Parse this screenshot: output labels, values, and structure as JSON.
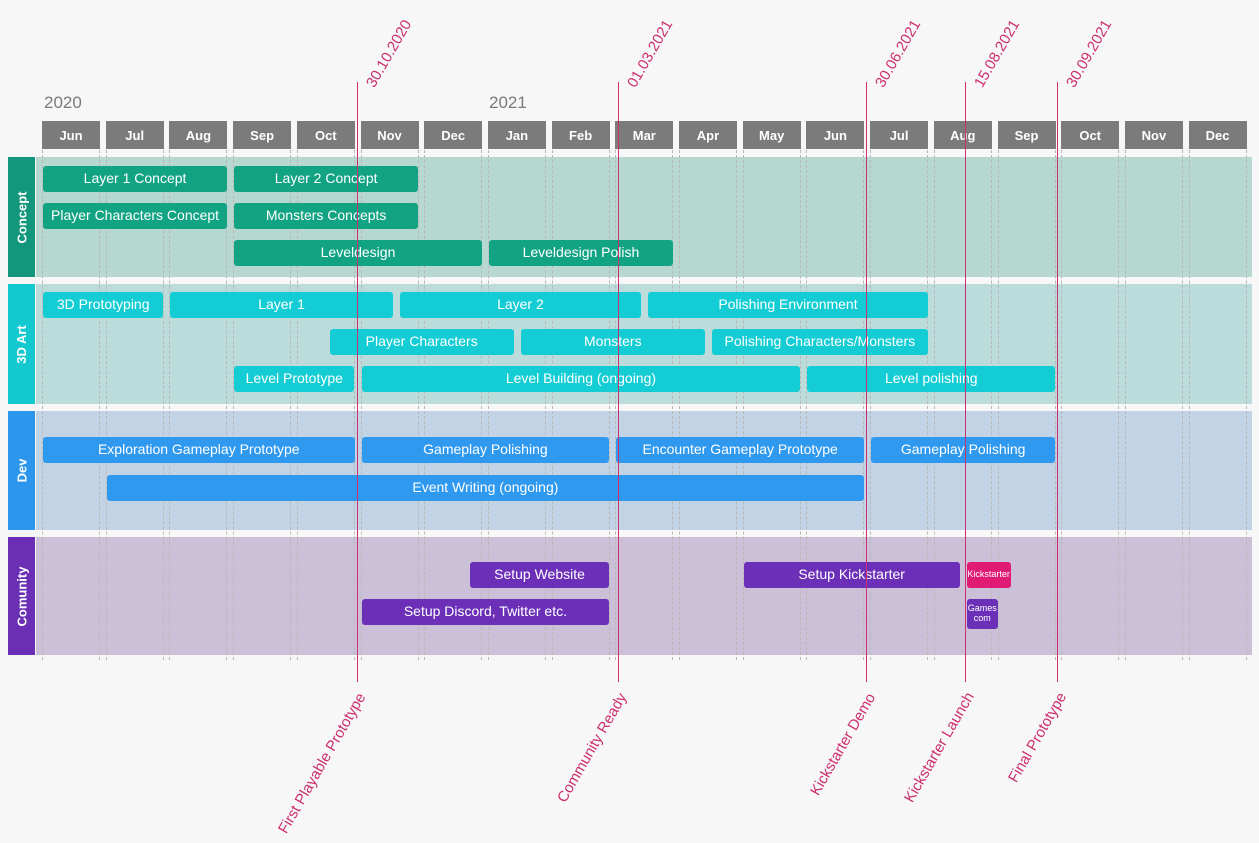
{
  "years": [
    "2020",
    "2021"
  ],
  "months": [
    "Jun",
    "Jul",
    "Aug",
    "Sep",
    "Oct",
    "Nov",
    "Dec",
    "Jan",
    "Feb",
    "Mar",
    "Apr",
    "May",
    "Jun",
    "Jul",
    "Aug",
    "Sep",
    "Oct",
    "Nov",
    "Dec"
  ],
  "lanes": [
    {
      "label": "Concept",
      "tab_color": "#12977c",
      "bg_color": "#b7d7d1",
      "bar_color": "#12a383",
      "bars": [
        {
          "label": "Layer 1 Concept",
          "start": 0,
          "end": 3.0,
          "row": 0
        },
        {
          "label": "Layer 2 Concept",
          "start": 3.0,
          "end": 6.0,
          "row": 0
        },
        {
          "label": "Player Characters Concept",
          "start": 0,
          "end": 3.0,
          "row": 1
        },
        {
          "label": "Monsters Concepts",
          "start": 3.0,
          "end": 6.0,
          "row": 1
        },
        {
          "label": "Leveldesign",
          "start": 3.0,
          "end": 7.0,
          "row": 2
        },
        {
          "label": "Leveldesign Polish",
          "start": 7.0,
          "end": 10.0,
          "row": 2
        }
      ]
    },
    {
      "label": "3D Art",
      "tab_color": "#13c9cf",
      "bg_color": "#bcdcdc",
      "bar_color": "#14cdd4",
      "bars": [
        {
          "label": "3D Prototyping",
          "start": 0,
          "end": 2.0,
          "row": 0
        },
        {
          "label": "Layer 1",
          "start": 2.0,
          "end": 5.6,
          "row": 0
        },
        {
          "label": "Layer 2",
          "start": 5.6,
          "end": 9.5,
          "row": 0
        },
        {
          "label": "Polishing Environment",
          "start": 9.5,
          "end": 14.0,
          "row": 0
        },
        {
          "label": "Player Characters",
          "start": 4.5,
          "end": 7.5,
          "row": 1
        },
        {
          "label": "Monsters",
          "start": 7.5,
          "end": 10.5,
          "row": 1
        },
        {
          "label": "Polishing Characters/Monsters",
          "start": 10.5,
          "end": 14.0,
          "row": 1
        },
        {
          "label": "Level Prototype",
          "start": 3.0,
          "end": 5.0,
          "row": 2
        },
        {
          "label": "Level Building (ongoing)",
          "start": 5.0,
          "end": 12.0,
          "row": 2
        },
        {
          "label": "Level polishing",
          "start": 12.0,
          "end": 16.0,
          "row": 2
        }
      ]
    },
    {
      "label": "Dev",
      "tab_color": "#2b96ec",
      "bg_color": "#c1d3e4",
      "bar_color": "#2f99ef",
      "bars": [
        {
          "label": "Exploration Gameplay Prototype",
          "start": 0,
          "end": 5.0,
          "row": 0
        },
        {
          "label": "Gameplay Polishing",
          "start": 5.0,
          "end": 9.0,
          "row": 0
        },
        {
          "label": "Encounter Gameplay Prototype",
          "start": 9.0,
          "end": 13.0,
          "row": 0
        },
        {
          "label": "Gameplay Polishing",
          "start": 13.0,
          "end": 16.0,
          "row": 0
        },
        {
          "label": "Event Writing (ongoing)",
          "start": 1.0,
          "end": 13.0,
          "row": 1
        }
      ]
    },
    {
      "label": "Comunity",
      "tab_color": "#6a2fb5",
      "bg_color": "#cbc0d7",
      "bar_color": "#6b2fb8",
      "bars": [
        {
          "label": "Setup Website",
          "start": 6.7,
          "end": 9.0,
          "row": 0
        },
        {
          "label": "Setup Kickstarter",
          "start": 11.0,
          "end": 14.5,
          "row": 0
        },
        {
          "label": "Kickstarter",
          "start": 14.5,
          "end": 15.3,
          "row": 0,
          "color": "#e01b76",
          "small": true
        },
        {
          "label": "Setup Discord, Twitter etc.",
          "start": 5.0,
          "end": 9.0,
          "row": 1
        },
        {
          "label": "Games com",
          "start": 14.5,
          "end": 15.1,
          "row": 1,
          "small": true
        }
      ]
    }
  ],
  "milestones": [
    {
      "date": "30.10.2020",
      "name": "First Playable Prototype",
      "month_pos": 5.0
    },
    {
      "date": "01.03.2021",
      "name": "Community Ready",
      "month_pos": 9.1
    },
    {
      "date": "30.06.2021",
      "name": "Kickstarter Demo",
      "month_pos": 13.0
    },
    {
      "date": "15.08.2021",
      "name": "Kickstarter Launch",
      "month_pos": 14.55
    },
    {
      "date": "30.09.2021",
      "name": "Final Prototype",
      "month_pos": 16.0
    }
  ],
  "milestone_color": "#cc2f6e"
}
